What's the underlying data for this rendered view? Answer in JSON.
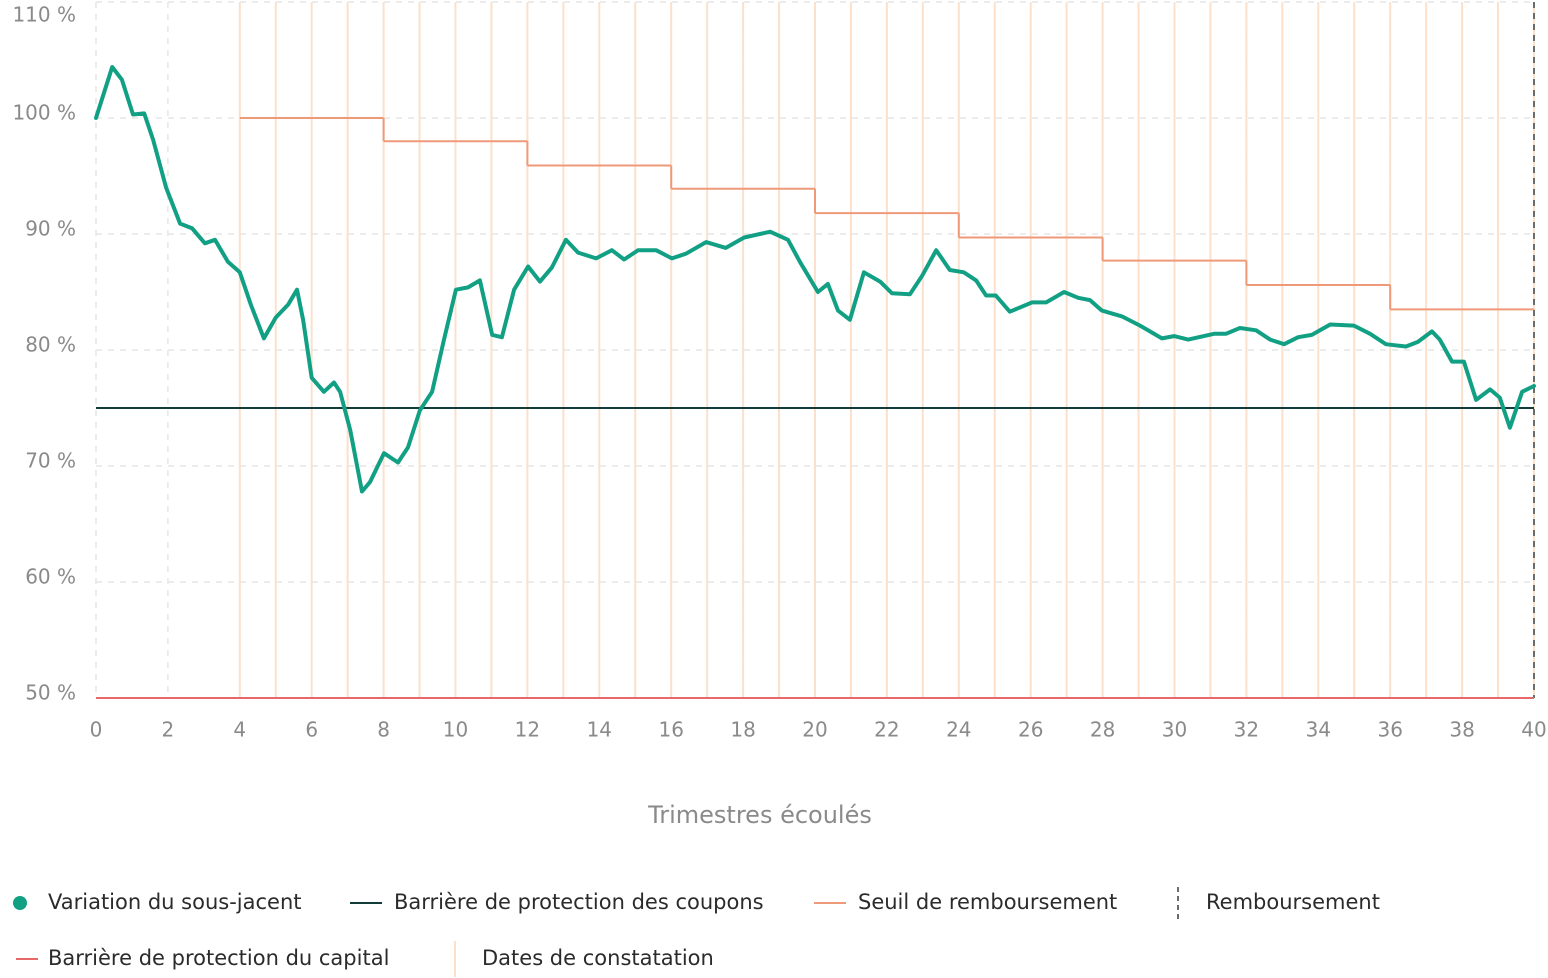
{
  "chart_data": {
    "type": "line",
    "xlabel": "Trimestres écoulés",
    "xlim": [
      0,
      40
    ],
    "xticks": [
      0,
      2,
      4,
      6,
      8,
      10,
      12,
      14,
      16,
      18,
      20,
      22,
      24,
      26,
      28,
      30,
      32,
      34,
      36,
      38,
      40
    ],
    "ylim": [
      50,
      110
    ],
    "yticks": [
      {
        "value": 50,
        "label": "50 %"
      },
      {
        "value": 60,
        "label": "60 %"
      },
      {
        "value": 70,
        "label": "70 %"
      },
      {
        "value": 80,
        "label": "80 %"
      },
      {
        "value": 90,
        "label": "90 %"
      },
      {
        "value": 100,
        "label": "100 %"
      },
      {
        "value": 110,
        "label": "110 %"
      }
    ],
    "grid": true,
    "x": [
      0,
      0.45,
      0.72,
      1.03,
      1.34,
      1.59,
      1.95,
      2.34,
      2.67,
      3.03,
      3.31,
      3.67,
      4.0,
      4.31,
      4.67,
      5.0,
      5.34,
      5.59,
      5.76,
      6.0,
      6.34,
      6.62,
      6.79,
      7.07,
      7.4,
      7.62,
      8.01,
      8.4,
      8.68,
      9.01,
      9.35,
      9.68,
      10.01,
      10.35,
      10.68,
      11.02,
      11.29,
      11.63,
      12.02,
      12.35,
      12.68,
      13.07,
      13.41,
      13.91,
      14.35,
      14.69,
      15.08,
      15.58,
      16.02,
      16.41,
      16.97,
      17.52,
      18.03,
      18.75,
      19.25,
      19.58,
      20.08,
      20.36,
      20.64,
      20.97,
      21.36,
      21.81,
      22.14,
      22.64,
      22.98,
      23.37,
      23.75,
      24.14,
      24.48,
      24.76,
      25.03,
      25.42,
      26.04,
      26.43,
      26.93,
      27.32,
      27.65,
      27.98,
      28.54,
      29.04,
      29.65,
      29.99,
      30.38,
      31.1,
      31.43,
      31.82,
      32.27,
      32.66,
      33.05,
      33.44,
      33.82,
      34.33,
      34.99,
      35.44,
      35.88,
      36.44,
      36.77,
      37.16,
      37.38,
      37.72,
      38.05,
      38.39,
      38.78,
      39.05,
      39.33,
      39.67,
      40.0
    ],
    "series": [
      {
        "name": "Variation du sous-jacent",
        "color": "#12a084",
        "values": [
          100,
          104.4,
          103.3,
          100.3,
          100.4,
          98.1,
          94.0,
          90.9,
          90.5,
          89.2,
          89.5,
          87.6,
          86.7,
          83.9,
          81.0,
          82.8,
          83.9,
          85.2,
          82.6,
          77.6,
          76.4,
          77.2,
          76.4,
          73.1,
          67.8,
          68.6,
          71.1,
          70.3,
          71.6,
          74.8,
          76.4,
          80.9,
          85.2,
          85.4,
          86.0,
          81.3,
          81.1,
          85.2,
          87.2,
          85.9,
          87.1,
          89.5,
          88.4,
          87.9,
          88.6,
          87.8,
          88.6,
          88.6,
          87.9,
          88.3,
          89.3,
          88.8,
          89.7,
          90.2,
          89.5,
          87.6,
          85.0,
          85.7,
          83.4,
          82.6,
          86.7,
          85.9,
          84.9,
          84.8,
          86.4,
          88.6,
          86.9,
          86.7,
          86.0,
          84.7,
          84.7,
          83.3,
          84.1,
          84.1,
          85.0,
          84.5,
          84.3,
          83.4,
          82.9,
          82.1,
          81.0,
          81.2,
          80.9,
          81.4,
          81.4,
          81.9,
          81.7,
          80.9,
          80.5,
          81.1,
          81.3,
          82.2,
          82.1,
          81.4,
          80.5,
          80.3,
          80.7,
          81.6,
          80.9,
          79.0,
          79.0,
          75.7,
          76.6,
          75.9,
          73.3,
          76.4,
          76.9
        ]
      }
    ],
    "lines": [
      {
        "name": "Barrière de protection des coupons",
        "color": "#123c3a",
        "value": 75
      },
      {
        "name": "Barrière de protection du capital",
        "color": "#e8686a",
        "value": 50
      }
    ],
    "threshold": {
      "name": "Seuil de remboursement",
      "color": "#ee9a78",
      "steps": [
        {
          "from": 4,
          "to": 8,
          "value": 100
        },
        {
          "from": 8,
          "to": 12,
          "value": 98
        },
        {
          "from": 12,
          "to": 16,
          "value": 95.9
        },
        {
          "from": 16,
          "to": 20,
          "value": 93.9
        },
        {
          "from": 20,
          "to": 24,
          "value": 91.8
        },
        {
          "from": 24,
          "to": 28,
          "value": 89.7
        },
        {
          "from": 28,
          "to": 32,
          "value": 87.7
        },
        {
          "from": 32,
          "to": 36,
          "value": 85.6
        },
        {
          "from": 36,
          "to": 40,
          "value": 83.5
        }
      ]
    },
    "observation_dates": {
      "name": "Dates de constatation",
      "color": "#fbe1cc",
      "x": [
        4,
        5,
        6,
        7,
        8,
        9,
        10,
        11,
        12,
        13,
        14,
        15,
        16,
        17,
        18,
        19,
        20,
        21,
        22,
        23,
        24,
        25,
        26,
        27,
        28,
        29,
        30,
        31,
        32,
        33,
        34,
        35,
        36,
        37,
        38,
        39,
        40
      ]
    },
    "redemption": {
      "name": "Remboursement",
      "color": "#6b6b6b",
      "x": 40
    }
  }
}
